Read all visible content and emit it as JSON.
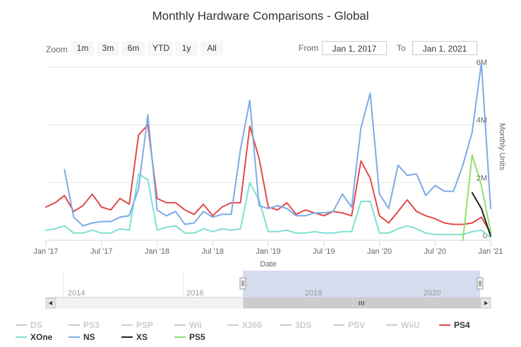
{
  "title": "Monthly Hardware Comparisons - Global",
  "range_selector": {
    "zoom_label": "Zoom",
    "buttons": [
      "1m",
      "3m",
      "6m",
      "YTD",
      "1y",
      "All"
    ],
    "from_label": "From",
    "from_value": "Jan 1, 2017",
    "to_label": "To",
    "to_value": "Jan 1, 2021"
  },
  "navigator": {
    "year_labels": [
      "2014",
      "2016",
      "2018",
      "2020"
    ],
    "selected_range": [
      "Jan 2017",
      "Jan 2021"
    ]
  },
  "colors": {
    "PS4": "#e04a4a",
    "XOne": "#7fe0d2",
    "NS": "#7cabe8",
    "XS": "#222222",
    "PS5": "#8ee06a",
    "hidden": "#cccccc"
  },
  "legend": {
    "hidden": [
      "DS",
      "PS3",
      "PSP",
      "Wii",
      "X360",
      "3DS",
      "PSV",
      "WiiU"
    ],
    "visible": [
      "PS4",
      "XOne",
      "NS",
      "XS",
      "PS5"
    ]
  },
  "chart_data": {
    "type": "line",
    "title": "Monthly Hardware Comparisons - Global",
    "xlabel": "Date",
    "ylabel": "Monthly Units",
    "ylim": [
      0,
      6000000
    ],
    "y_ticks": [
      "0",
      "2M",
      "4M",
      "6M"
    ],
    "x_ticks": [
      "Jan '17",
      "Jul '17",
      "Jan '18",
      "Jul '18",
      "Jan '19",
      "Jul '19",
      "Jan '20",
      "Jul '20",
      "Jan '21"
    ],
    "x": [
      "2017-01",
      "2017-02",
      "2017-03",
      "2017-04",
      "2017-05",
      "2017-06",
      "2017-07",
      "2017-08",
      "2017-09",
      "2017-10",
      "2017-11",
      "2017-12",
      "2018-01",
      "2018-02",
      "2018-03",
      "2018-04",
      "2018-05",
      "2018-06",
      "2018-07",
      "2018-08",
      "2018-09",
      "2018-10",
      "2018-11",
      "2018-12",
      "2019-01",
      "2019-02",
      "2019-03",
      "2019-04",
      "2019-05",
      "2019-06",
      "2019-07",
      "2019-08",
      "2019-09",
      "2019-10",
      "2019-11",
      "2019-12",
      "2020-01",
      "2020-02",
      "2020-03",
      "2020-04",
      "2020-05",
      "2020-06",
      "2020-07",
      "2020-08",
      "2020-09",
      "2020-10",
      "2020-11",
      "2020-12",
      "2021-01"
    ],
    "series": [
      {
        "name": "PS4",
        "values": [
          1150000,
          1300000,
          1550000,
          1000000,
          1200000,
          1600000,
          1150000,
          1050000,
          1450000,
          1250000,
          3650000,
          4000000,
          1450000,
          1300000,
          1300000,
          1050000,
          900000,
          1250000,
          850000,
          1150000,
          1300000,
          1300000,
          3950000,
          2850000,
          1150000,
          1050000,
          1300000,
          900000,
          1050000,
          950000,
          850000,
          1000000,
          950000,
          850000,
          2750000,
          2150000,
          850000,
          600000,
          1000000,
          1400000,
          1000000,
          850000,
          750000,
          600000,
          550000,
          550000,
          600000,
          800000,
          250000
        ]
      },
      {
        "name": "XOne",
        "values": [
          350000,
          400000,
          500000,
          250000,
          250000,
          350000,
          250000,
          250000,
          400000,
          350000,
          2300000,
          2100000,
          350000,
          450000,
          500000,
          250000,
          250000,
          400000,
          300000,
          400000,
          350000,
          400000,
          2000000,
          1400000,
          300000,
          300000,
          350000,
          250000,
          250000,
          300000,
          250000,
          250000,
          300000,
          300000,
          1350000,
          1350000,
          250000,
          250000,
          400000,
          500000,
          400000,
          250000,
          200000,
          200000,
          200000,
          200000,
          300000,
          350000,
          100000
        ]
      },
      {
        "name": "NS",
        "values": [
          null,
          null,
          2450000,
          800000,
          500000,
          600000,
          650000,
          650000,
          800000,
          850000,
          1800000,
          4350000,
          1050000,
          850000,
          1000000,
          550000,
          600000,
          1000000,
          800000,
          900000,
          900000,
          3150000,
          4850000,
          1200000,
          1100000,
          1200000,
          1100000,
          850000,
          850000,
          950000,
          950000,
          1000000,
          1600000,
          1150000,
          3900000,
          5100000,
          1600000,
          1100000,
          2600000,
          2250000,
          2300000,
          1550000,
          1900000,
          1700000,
          1700000,
          2600000,
          3750000,
          6150000,
          1100000
        ]
      },
      {
        "name": "XS",
        "values": [
          null,
          null,
          null,
          null,
          null,
          null,
          null,
          null,
          null,
          null,
          null,
          null,
          null,
          null,
          null,
          null,
          null,
          null,
          null,
          null,
          null,
          null,
          null,
          null,
          null,
          null,
          null,
          null,
          null,
          null,
          null,
          null,
          null,
          null,
          null,
          null,
          null,
          null,
          null,
          null,
          null,
          null,
          null,
          null,
          null,
          null,
          1650000,
          1100000,
          150000
        ]
      },
      {
        "name": "PS5",
        "values": [
          null,
          null,
          null,
          null,
          null,
          null,
          null,
          null,
          null,
          null,
          null,
          null,
          null,
          null,
          null,
          null,
          null,
          null,
          null,
          null,
          null,
          null,
          null,
          null,
          null,
          null,
          null,
          null,
          null,
          null,
          null,
          null,
          null,
          null,
          null,
          null,
          null,
          null,
          null,
          null,
          null,
          null,
          null,
          null,
          null,
          0,
          2950000,
          1900000,
          300000
        ]
      }
    ]
  }
}
